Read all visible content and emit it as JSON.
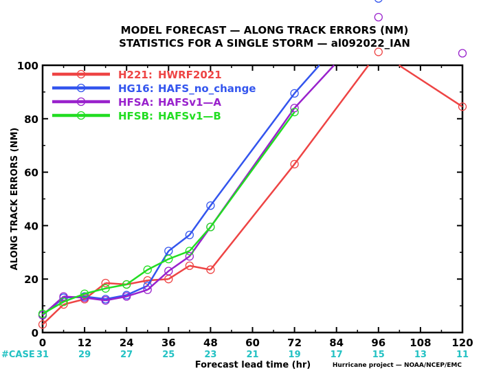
{
  "title_line1": "MODEL FORECAST — ALONG TRACK ERRORS (NM)",
  "title_line2": "STATISTICS FOR A SINGLE STORM — al092022_IAN",
  "credit": "Hurricane project — NOAA/NCEP/EMC",
  "case_label": "#CASE",
  "chart_data": {
    "type": "line",
    "title": "MODEL FORECAST — ALONG TRACK ERRORS (NM)",
    "subtitle": "STATISTICS FOR A SINGLE STORM — al092022_IAN",
    "xlabel": "Forecast lead time (hr)",
    "ylabel": "ALONG TRACK ERRORS (NM)",
    "xlim": [
      0,
      120
    ],
    "ylim": [
      0,
      100
    ],
    "xticks": [
      0,
      12,
      24,
      36,
      48,
      60,
      72,
      84,
      96,
      108,
      120
    ],
    "yticks": [
      0,
      20,
      40,
      60,
      80,
      100
    ],
    "grid": false,
    "legend_position": "top-left",
    "case_counts": [
      {
        "x": 0,
        "count": "31"
      },
      {
        "x": 12,
        "count": "29"
      },
      {
        "x": 24,
        "count": "27"
      },
      {
        "x": 36,
        "count": "25"
      },
      {
        "x": 48,
        "count": "23"
      },
      {
        "x": 60,
        "count": "21"
      },
      {
        "x": 72,
        "count": "19"
      },
      {
        "x": 84,
        "count": "17"
      },
      {
        "x": 96,
        "count": "15"
      },
      {
        "x": 108,
        "count": "13"
      },
      {
        "x": 120,
        "count": "11"
      }
    ],
    "series": [
      {
        "code": "H221:",
        "name": "HWRF2021",
        "color": "#ee4444",
        "x": [
          0,
          6,
          12,
          18,
          24,
          30,
          36,
          42,
          48,
          72,
          96,
          120
        ],
        "y": [
          3,
          10.5,
          12.5,
          18.5,
          18,
          19.5,
          20,
          25,
          23.5,
          63,
          105,
          84.5
        ]
      },
      {
        "code": "HG16:",
        "name": "HAFS_no_change",
        "color": "#3355ee",
        "x": [
          0,
          6,
          12,
          18,
          24,
          30,
          36,
          42,
          48,
          72,
          96
        ],
        "y": [
          6.5,
          13,
          13.5,
          12.5,
          14,
          17.5,
          30.5,
          36.5,
          47.5,
          89.5,
          125
        ]
      },
      {
        "code": "HFSA:",
        "name": "HAFSv1—A",
        "color": "#9922cc",
        "x": [
          0,
          6,
          12,
          18,
          24,
          30,
          36,
          42,
          48,
          72,
          96,
          120
        ],
        "y": [
          6.5,
          13.5,
          13,
          12,
          13.5,
          16,
          23,
          28.5,
          39.5,
          84,
          118,
          104.5
        ]
      },
      {
        "code": "HFSB:",
        "name": "HAFSv1—B",
        "color": "#22dd22",
        "x": [
          0,
          6,
          12,
          18,
          24,
          30,
          36,
          42,
          48,
          72
        ],
        "y": [
          7,
          11.5,
          14.5,
          16.5,
          18,
          23.5,
          27.5,
          30.5,
          39.5,
          82.5
        ]
      }
    ]
  }
}
